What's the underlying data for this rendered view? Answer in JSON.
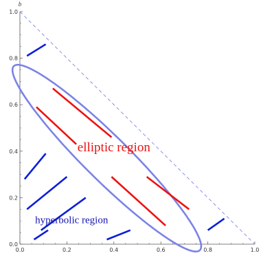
{
  "chart_data": {
    "type": "line",
    "xlabel": "",
    "ylabel": "b",
    "xlim": [
      0,
      1
    ],
    "ylim": [
      0,
      1
    ],
    "x_ticks": [
      "0.0",
      "0.2",
      "0.4",
      "0.6",
      "0.8",
      "1.0"
    ],
    "y_ticks": [
      "0.0",
      "0.2",
      "0.4",
      "0.6",
      "0.8",
      "1.0"
    ],
    "boundary_line": {
      "x": [
        0,
        1
      ],
      "y": [
        1,
        0
      ],
      "style": "dashed",
      "color": "#8a93e6"
    },
    "ellipse": {
      "center": [
        0.37,
        0.37
      ],
      "angle_deg": -45,
      "semi_major": 0.56,
      "semi_minor": 0.095,
      "color": "#7b83e6"
    },
    "elliptic_segments": [
      [
        [
          0.07,
          0.59
        ],
        [
          0.24,
          0.43
        ]
      ],
      [
        [
          0.14,
          0.67
        ],
        [
          0.39,
          0.46
        ]
      ],
      [
        [
          0.39,
          0.29
        ],
        [
          0.62,
          0.08
        ]
      ],
      [
        [
          0.54,
          0.29
        ],
        [
          0.72,
          0.15
        ]
      ]
    ],
    "hyperbolic_segments": [
      [
        [
          0.03,
          0.81
        ],
        [
          0.11,
          0.86
        ]
      ],
      [
        [
          0.02,
          0.28
        ],
        [
          0.11,
          0.39
        ]
      ],
      [
        [
          0.03,
          0.15
        ],
        [
          0.2,
          0.29
        ]
      ],
      [
        [
          0.09,
          0.06
        ],
        [
          0.28,
          0.2
        ]
      ],
      [
        [
          0.06,
          0.02
        ],
        [
          0.12,
          0.06
        ]
      ],
      [
        [
          0.37,
          0.02
        ],
        [
          0.47,
          0.06
        ]
      ],
      [
        [
          0.8,
          0.06
        ],
        [
          0.87,
          0.11
        ]
      ]
    ],
    "annotations": [
      {
        "text": "elliptic region",
        "x": 0.4,
        "y": 0.4,
        "color": "#ee1111"
      },
      {
        "text": "hyperbolic region",
        "x": 0.22,
        "y": 0.09,
        "color": "#1515b0"
      }
    ],
    "colors": {
      "elliptic": "#ee1111",
      "hyperbolic": "#0a1ed6",
      "axis": "#555555"
    }
  }
}
